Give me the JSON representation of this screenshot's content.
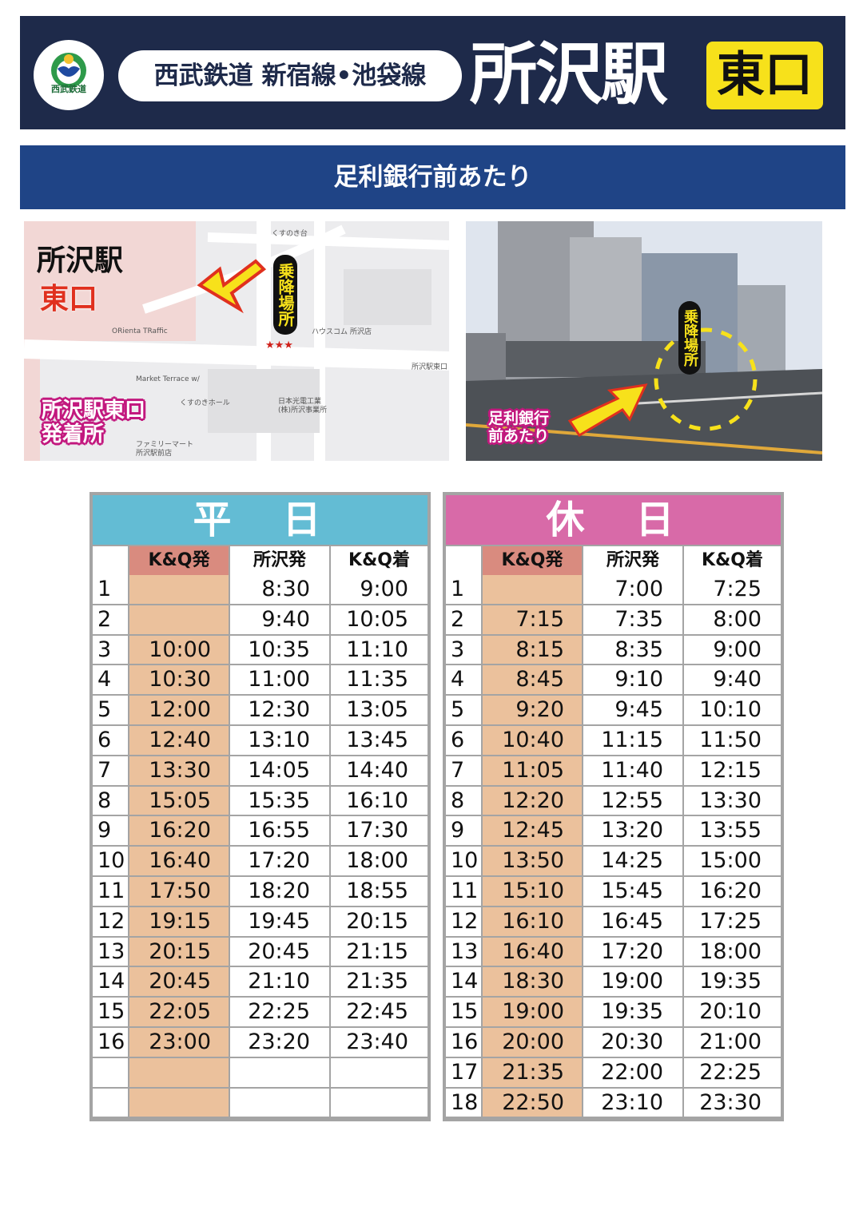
{
  "header": {
    "logo": "西武鉄道",
    "lines": "西武鉄道 新宿線•池袋線",
    "station": "所沢駅",
    "exit": "東口"
  },
  "location": "足利銀行前あたり",
  "map": {
    "station": "所沢駅",
    "exit": "東口",
    "stop_sign": "乗降場所",
    "marker": "★★★",
    "pickup": [
      "所沢駅東口",
      "発着所"
    ],
    "labels": [
      "くすのき台",
      "ハウスコム 所沢店",
      "所沢駅東口",
      "ORienta TRaffic",
      "Market Terrace w/",
      "くすのきホール",
      "日本光電工業",
      "(株)所沢事業所",
      "ファミリーマート",
      "所沢駅前店"
    ]
  },
  "photo": {
    "stop_sign": "乗降場所",
    "caption": [
      "足利銀行",
      "前あたり"
    ]
  },
  "timetables": [
    {
      "title": "平　日",
      "headers": [
        "K&Q発",
        "所沢発",
        "K&Q着"
      ],
      "rows": [
        [
          1,
          null,
          "8:30",
          "9:00"
        ],
        [
          2,
          null,
          "9:40",
          "10:05"
        ],
        [
          3,
          "10:00",
          "10:35",
          "11:10"
        ],
        [
          4,
          "10:30",
          "11:00",
          "11:35"
        ],
        [
          5,
          "12:00",
          "12:30",
          "13:05"
        ],
        [
          6,
          "12:40",
          "13:10",
          "13:45"
        ],
        [
          7,
          "13:30",
          "14:05",
          "14:40"
        ],
        [
          8,
          "15:05",
          "15:35",
          "16:10"
        ],
        [
          9,
          "16:20",
          "16:55",
          "17:30"
        ],
        [
          10,
          "16:40",
          "17:20",
          "18:00"
        ],
        [
          11,
          "17:50",
          "18:20",
          "18:55"
        ],
        [
          12,
          "19:15",
          "19:45",
          "20:15"
        ],
        [
          13,
          "20:15",
          "20:45",
          "21:15"
        ],
        [
          14,
          "20:45",
          "21:10",
          "21:35"
        ],
        [
          15,
          "22:05",
          "22:25",
          "22:45"
        ],
        [
          16,
          "23:00",
          "23:20",
          "23:40"
        ],
        [
          null,
          null,
          null,
          null
        ],
        [
          null,
          null,
          null,
          null
        ]
      ]
    },
    {
      "title": "休　日",
      "headers": [
        "K&Q発",
        "所沢発",
        "K&Q着"
      ],
      "rows": [
        [
          1,
          null,
          "7:00",
          "7:25"
        ],
        [
          2,
          "7:15",
          "7:35",
          "8:00"
        ],
        [
          3,
          "8:15",
          "8:35",
          "9:00"
        ],
        [
          4,
          "8:45",
          "9:10",
          "9:40"
        ],
        [
          5,
          "9:20",
          "9:45",
          "10:10"
        ],
        [
          6,
          "10:40",
          "11:15",
          "11:50"
        ],
        [
          7,
          "11:05",
          "11:40",
          "12:15"
        ],
        [
          8,
          "12:20",
          "12:55",
          "13:30"
        ],
        [
          9,
          "12:45",
          "13:20",
          "13:55"
        ],
        [
          10,
          "13:50",
          "14:25",
          "15:00"
        ],
        [
          11,
          "15:10",
          "15:45",
          "16:20"
        ],
        [
          12,
          "16:10",
          "16:45",
          "17:25"
        ],
        [
          13,
          "16:40",
          "17:20",
          "18:00"
        ],
        [
          14,
          "18:30",
          "19:00",
          "19:35"
        ],
        [
          15,
          "19:00",
          "19:35",
          "20:10"
        ],
        [
          16,
          "20:00",
          "20:30",
          "21:00"
        ],
        [
          17,
          "21:35",
          "22:00",
          "22:25"
        ],
        [
          18,
          "22:50",
          "23:10",
          "23:30"
        ]
      ]
    }
  ]
}
